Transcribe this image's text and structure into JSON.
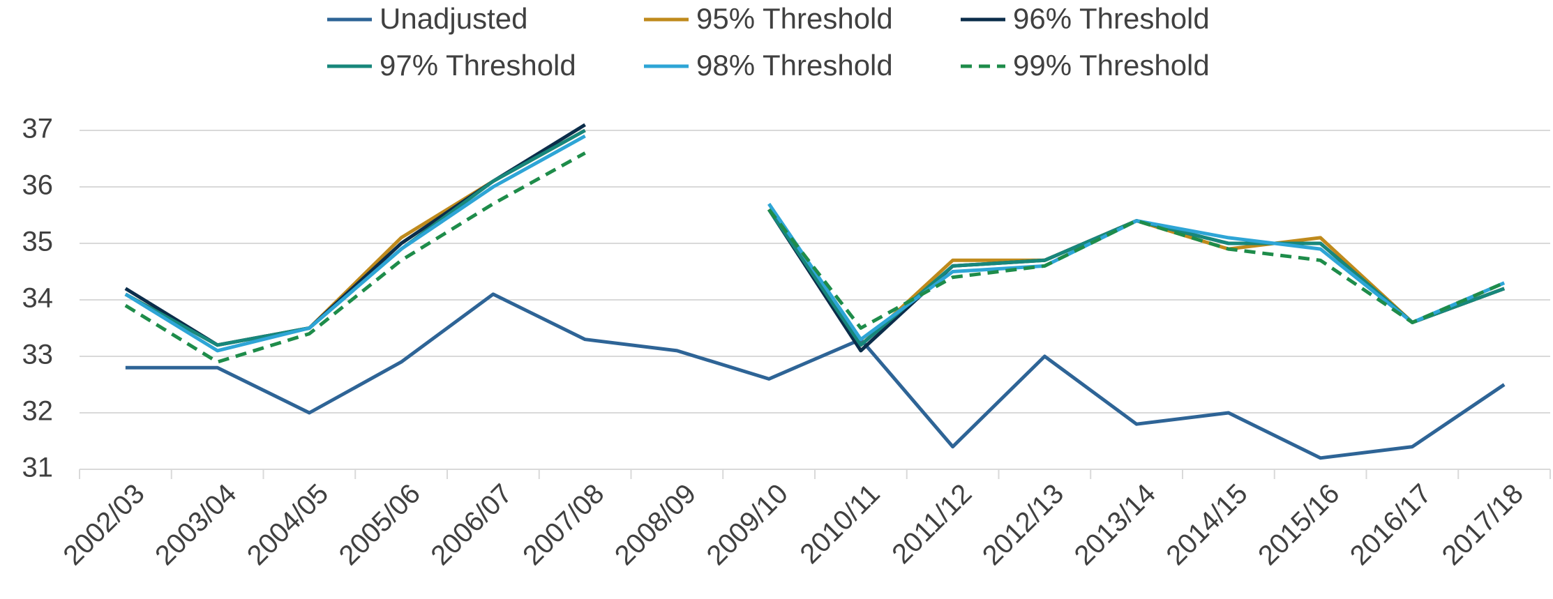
{
  "chart_data": {
    "type": "line",
    "categories": [
      "2002/03",
      "2003/04",
      "2004/05",
      "2005/06",
      "2006/07",
      "2007/08",
      "2008/09",
      "2009/10",
      "2010/11",
      "2011/12",
      "2012/13",
      "2013/14",
      "2014/15",
      "2015/16",
      "2016/17",
      "2017/18"
    ],
    "series": [
      {
        "name": "Unadjusted",
        "color": "#2e6496",
        "values": [
          32.8,
          32.8,
          32.0,
          32.9,
          34.1,
          33.3,
          33.1,
          32.6,
          33.3,
          31.4,
          33.0,
          31.8,
          32.0,
          31.2,
          31.4,
          32.5
        ]
      },
      {
        "name": "95% Threshold",
        "color": "#bf8a1c",
        "values": [
          34.1,
          33.2,
          33.5,
          35.1,
          36.1,
          37.0,
          null,
          35.6,
          33.2,
          34.7,
          34.7,
          35.4,
          34.9,
          35.1,
          33.6,
          34.2
        ]
      },
      {
        "name": "96% Threshold",
        "color": "#0b2d4a",
        "values": [
          34.2,
          33.2,
          33.5,
          35.0,
          36.1,
          37.1,
          null,
          35.6,
          33.1,
          34.6,
          34.7,
          35.4,
          35.0,
          35.0,
          33.6,
          34.2
        ]
      },
      {
        "name": "97% Threshold",
        "color": "#17877b",
        "values": [
          34.1,
          33.2,
          33.5,
          34.9,
          36.1,
          37.0,
          null,
          35.6,
          33.2,
          34.6,
          34.7,
          35.4,
          35.0,
          35.0,
          33.6,
          34.2
        ]
      },
      {
        "name": "98% Threshold",
        "color": "#2ea5d6",
        "values": [
          34.1,
          33.1,
          33.5,
          34.9,
          36.0,
          36.9,
          null,
          35.7,
          33.3,
          34.5,
          34.6,
          35.4,
          35.1,
          34.9,
          33.6,
          34.3
        ]
      },
      {
        "name": "99% Threshold",
        "color": "#1e8c4a",
        "dashed": true,
        "values": [
          33.9,
          32.9,
          33.4,
          34.7,
          35.7,
          36.6,
          null,
          35.6,
          33.5,
          34.4,
          34.6,
          35.4,
          34.9,
          34.7,
          33.6,
          34.3
        ]
      }
    ],
    "ylim": [
      31,
      37
    ],
    "yticks": [
      31,
      32,
      33,
      34,
      35,
      36,
      37
    ],
    "grid": true,
    "legend": "top"
  }
}
